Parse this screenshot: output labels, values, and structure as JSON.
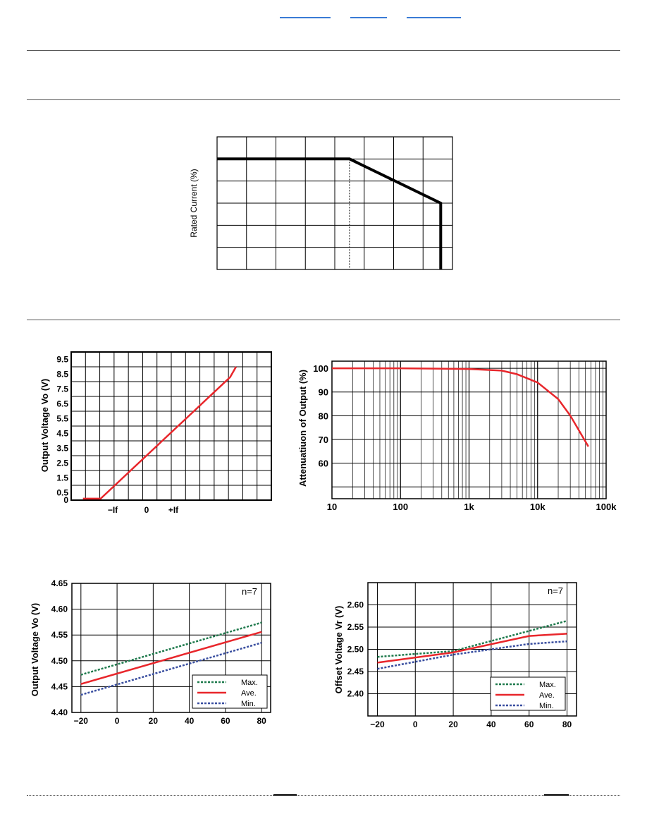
{
  "charts": {
    "derating": {
      "ylabel": "Rated Current (%)"
    },
    "vo_vs_if": {
      "ylabel": "Output Voltage Vo (V)",
      "y_ticks": [
        "9.5",
        "8.5",
        "7.5",
        "6.5",
        "5.5",
        "4.5",
        "3.5",
        "2.5",
        "1.5",
        "0.5",
        "0"
      ],
      "x_ticks": [
        "−If",
        "0",
        "+If"
      ]
    },
    "freq_resp": {
      "ylabel": "Attenuatiuon of Output (%)",
      "y_ticks": [
        "100",
        "90",
        "80",
        "70",
        "60"
      ],
      "x_ticks": [
        "10",
        "100",
        "1k",
        "10k",
        "100k"
      ]
    },
    "vo_temp": {
      "ylabel": "Output Voltage Vo (V)",
      "annotation": "n=7",
      "y_ticks": [
        "4.65",
        "4.60",
        "4.55",
        "4.50",
        "4.45",
        "4.40"
      ],
      "x_ticks": [
        "−20",
        "0",
        "20",
        "40",
        "60",
        "80"
      ],
      "legend": [
        "Max.",
        "Ave.",
        "Min."
      ]
    },
    "vr_temp": {
      "ylabel": "Offset  Voltage Vr (V)",
      "annotation": "n=7",
      "y_ticks": [
        "2.60",
        "2.55",
        "2.50",
        "2.45",
        "2.40"
      ],
      "x_ticks": [
        "−20",
        "0",
        "20",
        "40",
        "60",
        "80"
      ],
      "legend": [
        "Max.",
        "Ave.",
        "Min."
      ]
    }
  },
  "chart_data": [
    {
      "type": "line",
      "title": "",
      "xlabel": "",
      "ylabel": "Rated Current (%)",
      "grid": true,
      "series": [
        {
          "x": [
            0,
            4.5,
            7.6,
            7.6
          ],
          "y": [
            5,
            5,
            3,
            0
          ]
        }
      ],
      "annotations": [
        "dashed vertical reference line at x=4.5"
      ]
    },
    {
      "type": "line",
      "title": "",
      "xlabel": "",
      "ylabel": "Output Voltage Vo (V)",
      "grid": true,
      "categories_x": [
        "−If",
        "0",
        "+If"
      ],
      "series": [
        {
          "x": [
            -4,
            -2.5,
            8.5,
            9
          ],
          "y": [
            0.1,
            0.1,
            8.3,
            9.0
          ]
        }
      ]
    },
    {
      "type": "line",
      "title": "",
      "xlabel": "",
      "ylabel": "Attenuatiuon of Output (%)",
      "xscale": "log",
      "xlim": [
        10,
        100000
      ],
      "grid": true,
      "series": [
        {
          "x": [
            10,
            100,
            1000,
            3000,
            5000,
            10000,
            20000,
            30000,
            55000
          ],
          "y": [
            100,
            100,
            99.7,
            99,
            97.5,
            94,
            87,
            80,
            67
          ]
        }
      ]
    },
    {
      "type": "line",
      "title": "",
      "xlabel": "",
      "ylabel": "Output Voltage Vo (V)",
      "ylim": [
        4.4,
        4.65
      ],
      "xlim": [
        -25,
        85
      ],
      "annotations": [
        "n=7"
      ],
      "legend": "bottom-right",
      "series": [
        {
          "name": "Max.",
          "x": [
            -20,
            80
          ],
          "y": [
            4.473,
            4.574
          ]
        },
        {
          "name": "Ave.",
          "x": [
            -20,
            80
          ],
          "y": [
            4.455,
            4.556
          ]
        },
        {
          "name": "Min.",
          "x": [
            -20,
            80
          ],
          "y": [
            4.434,
            4.535
          ]
        }
      ]
    },
    {
      "type": "line",
      "title": "",
      "xlabel": "",
      "ylabel": "Offset  Voltage Vr (V)",
      "ylim": [
        2.35,
        2.65
      ],
      "xlim": [
        -25,
        85
      ],
      "annotations": [
        "n=7"
      ],
      "legend": "bottom-right",
      "series": [
        {
          "name": "Max.",
          "x": [
            -20,
            20,
            80
          ],
          "y": [
            2.483,
            2.496,
            2.564
          ]
        },
        {
          "name": "Ave.",
          "x": [
            -20,
            20,
            60,
            80
          ],
          "y": [
            2.47,
            2.493,
            2.53,
            2.535
          ]
        },
        {
          "name": "Min.",
          "x": [
            -20,
            20,
            60,
            80
          ],
          "y": [
            2.456,
            2.488,
            2.512,
            2.518
          ]
        }
      ]
    }
  ],
  "colors": {
    "max": "#1f7a4d",
    "ave": "#e8262b",
    "min": "#3a4fa0",
    "link": "#3a7bd5"
  }
}
